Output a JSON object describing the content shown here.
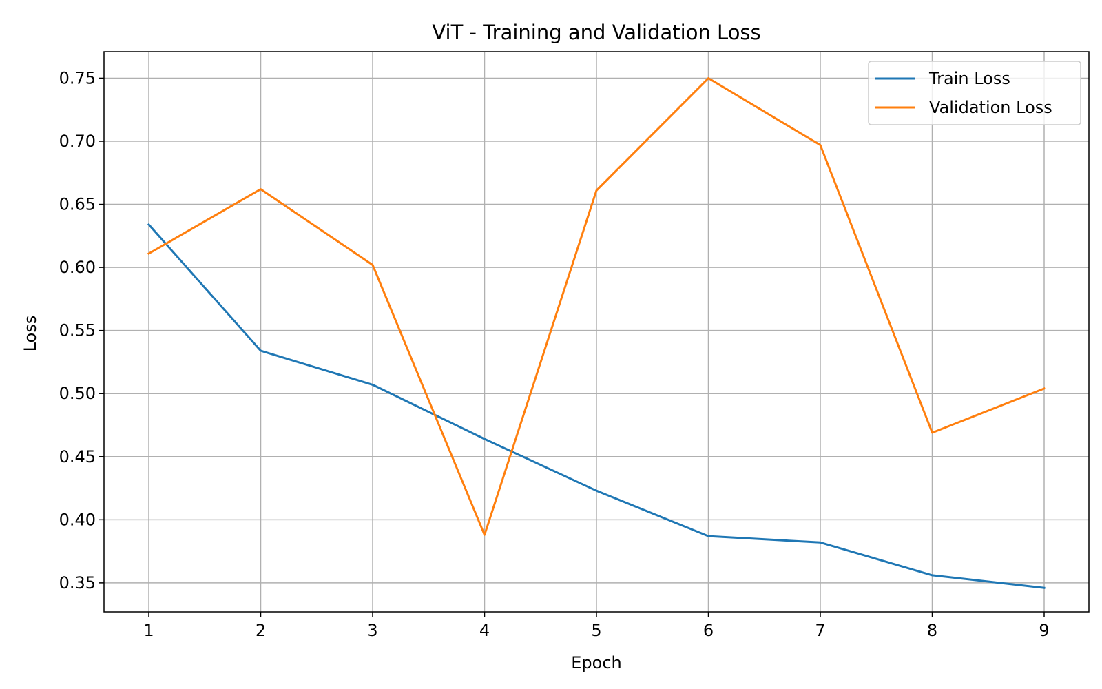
{
  "chart_data": {
    "type": "line",
    "title": "ViT - Training and Validation Loss",
    "xlabel": "Epoch",
    "ylabel": "Loss",
    "x": [
      1,
      2,
      3,
      4,
      5,
      6,
      7,
      8,
      9
    ],
    "xlim": [
      0.6,
      9.4
    ],
    "ylim": [
      0.327,
      0.771
    ],
    "xticks": [
      "1",
      "2",
      "3",
      "4",
      "5",
      "6",
      "7",
      "8",
      "9"
    ],
    "yticks": [
      "0.35",
      "0.40",
      "0.45",
      "0.50",
      "0.55",
      "0.60",
      "0.65",
      "0.70",
      "0.75"
    ],
    "grid": true,
    "legend_position": "top-right",
    "series": [
      {
        "name": "Train Loss",
        "color": "#1f77b4",
        "values": [
          0.634,
          0.534,
          0.507,
          0.464,
          0.423,
          0.387,
          0.382,
          0.356,
          0.346
        ]
      },
      {
        "name": "Validation Loss",
        "color": "#ff7f0e",
        "values": [
          0.611,
          0.662,
          0.602,
          0.388,
          0.661,
          0.75,
          0.697,
          0.469,
          0.504
        ]
      }
    ]
  }
}
